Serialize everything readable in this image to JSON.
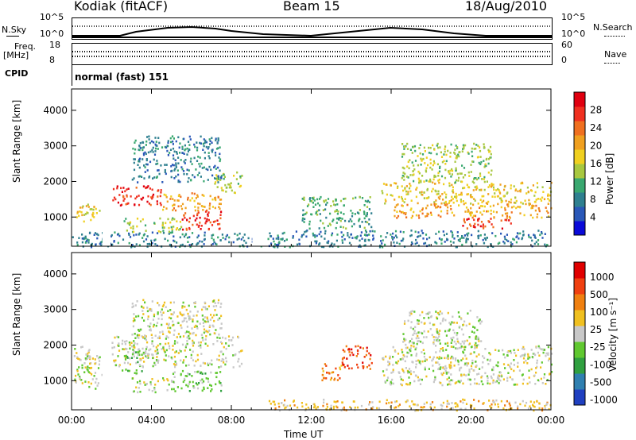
{
  "header": {
    "station": "Kodiak (fitACF)",
    "beam": "Beam 15",
    "date": "18/Aug/2010"
  },
  "top_panel": {
    "left_label": "N.Sky",
    "left_ticks": [
      "10^5",
      "10^0"
    ],
    "right_ticks": [
      "10^5",
      "10^0"
    ],
    "right_label": "N.Search"
  },
  "freq_panel": {
    "left_label_line1": "Freq.",
    "left_label_line2": "[MHz]",
    "left_ticks": [
      "18",
      "8"
    ],
    "right_ticks": [
      "60",
      "0"
    ],
    "right_label": "Nave"
  },
  "cpid_panel": {
    "label": "CPID",
    "text": "normal (fast) 151"
  },
  "colors": {
    "background": "#ffffff",
    "axis": "#000000",
    "ground_scatter": "#bebebe"
  },
  "chart_data": [
    {
      "type": "heatmap",
      "title": "",
      "ylabel": "Slant Range [km]",
      "xlabel": "",
      "x_range_hours": [
        0,
        24
      ],
      "ylim": [
        180,
        4600
      ],
      "y_ticks": [
        "4000",
        "3000",
        "2000",
        "1000"
      ],
      "colorbar": {
        "label": "Power [dB]",
        "ticks": [
          "28",
          "24",
          "20",
          "16",
          "12",
          "8",
          "4"
        ],
        "colors": [
          "#0a0ad8",
          "#2a58b8",
          "#2f8090",
          "#3aa870",
          "#a8c840",
          "#f0d020",
          "#f0a020",
          "#f07020",
          "#f03020",
          "#e00010"
        ]
      },
      "regions": [
        {
          "t0": 0.1,
          "t1": 1.5,
          "r0": 900,
          "r1": 1400,
          "level": 5
        },
        {
          "t0": 2.0,
          "t1": 4.5,
          "r0": 1350,
          "r1": 1900,
          "level": 8
        },
        {
          "t0": 4.5,
          "t1": 7.5,
          "r0": 1200,
          "r1": 1700,
          "level": 6
        },
        {
          "t0": 5.5,
          "t1": 7.5,
          "r0": 650,
          "r1": 1200,
          "level": 8
        },
        {
          "t0": 2.5,
          "t1": 5.5,
          "r0": 600,
          "r1": 1000,
          "level": 4
        },
        {
          "t0": 7.0,
          "t1": 8.5,
          "r0": 1700,
          "r1": 2300,
          "level": 4
        },
        {
          "t0": 3.0,
          "t1": 7.5,
          "r0": 2000,
          "r1": 3300,
          "level": 2
        },
        {
          "t0": 0.0,
          "t1": 9.5,
          "r0": 180,
          "r1": 600,
          "level": 2
        },
        {
          "t0": 9.8,
          "t1": 24.0,
          "r0": 180,
          "r1": 650,
          "level": 2
        },
        {
          "t0": 11.5,
          "t1": 15.0,
          "r0": 700,
          "r1": 1600,
          "level": 3
        },
        {
          "t0": 15.5,
          "t1": 24.0,
          "r0": 1400,
          "r1": 2000,
          "level": 5
        },
        {
          "t0": 16.0,
          "t1": 24.0,
          "r0": 1000,
          "r1": 1400,
          "level": 6
        },
        {
          "t0": 19.5,
          "t1": 22.0,
          "r0": 700,
          "r1": 1000,
          "level": 8
        },
        {
          "t0": 16.5,
          "t1": 21.0,
          "r0": 2000,
          "r1": 3100,
          "level": 4
        }
      ]
    },
    {
      "type": "heatmap",
      "title": "",
      "ylabel": "Slant Range [km]",
      "xlabel": "Time UT",
      "x_range_hours": [
        0,
        24
      ],
      "ylim": [
        180,
        4600
      ],
      "y_ticks": [
        "4000",
        "3000",
        "2000",
        "1000"
      ],
      "x_ticks": [
        "00:00",
        "04:00",
        "08:00",
        "12:00",
        "16:00",
        "20:00",
        "00:00"
      ],
      "colorbar": {
        "label": "Velocity [m s⁻¹]",
        "ticks": [
          "1000",
          "500",
          "100",
          "25",
          "-25",
          "-100",
          "-500",
          "-1000"
        ],
        "colors": [
          "#2040c0",
          "#3080b0",
          "#30a040",
          "#60c830",
          "#c8c8c8",
          "#f0c020",
          "#f08010",
          "#f04010",
          "#e00000"
        ]
      },
      "regions": [
        {
          "t0": 0.1,
          "t1": 1.5,
          "r0": 800,
          "r1": 2000,
          "level": 4
        },
        {
          "t0": 2.0,
          "t1": 8.5,
          "r0": 1400,
          "r1": 2300,
          "level": 4
        },
        {
          "t0": 2.5,
          "t1": 3.5,
          "r0": 1200,
          "r1": 1900,
          "level": 3
        },
        {
          "t0": 5.0,
          "t1": 7.5,
          "r0": 700,
          "r1": 1300,
          "level": 3
        },
        {
          "t0": 3.0,
          "t1": 5.0,
          "r0": 700,
          "r1": 1100,
          "level": 4
        },
        {
          "t0": 3.0,
          "t1": 7.5,
          "r0": 2300,
          "r1": 3300,
          "level": 4
        },
        {
          "t0": 13.5,
          "t1": 15.0,
          "r0": 1300,
          "r1": 2000,
          "level": 7
        },
        {
          "t0": 12.5,
          "t1": 13.5,
          "r0": 1000,
          "r1": 1500,
          "level": 6
        },
        {
          "t0": 15.5,
          "t1": 24.0,
          "r0": 900,
          "r1": 2000,
          "level": 4
        },
        {
          "t0": 16.5,
          "t1": 20.5,
          "r0": 2000,
          "r1": 3000,
          "level": 4
        },
        {
          "t0": 9.8,
          "t1": 24.0,
          "r0": 180,
          "r1": 500,
          "level": 5
        }
      ]
    }
  ]
}
